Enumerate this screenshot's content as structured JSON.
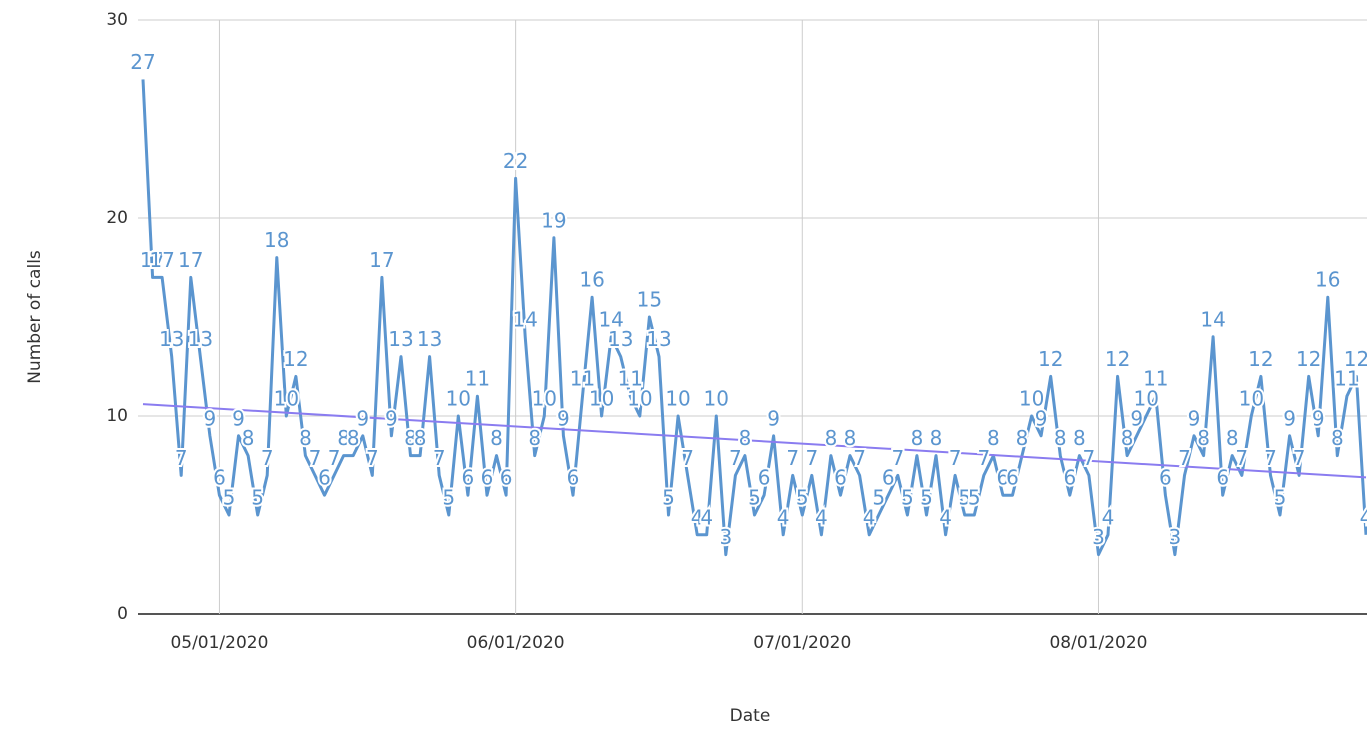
{
  "chart_data": {
    "type": "line",
    "x_axis_label": "Date",
    "y_axis_label": "Number of calls",
    "x": [
      "04/23/2020",
      "04/24/2020",
      "04/25/2020",
      "04/26/2020",
      "04/27/2020",
      "04/28/2020",
      "04/29/2020",
      "04/30/2020",
      "05/01/2020",
      "05/02/2020",
      "05/03/2020",
      "05/04/2020",
      "05/05/2020",
      "05/06/2020",
      "05/07/2020",
      "05/08/2020",
      "05/09/2020",
      "05/10/2020",
      "05/11/2020",
      "05/12/2020",
      "05/13/2020",
      "05/14/2020",
      "05/15/2020",
      "05/16/2020",
      "05/17/2020",
      "05/18/2020",
      "05/19/2020",
      "05/20/2020",
      "05/21/2020",
      "05/22/2020",
      "05/23/2020",
      "05/24/2020",
      "05/25/2020",
      "05/26/2020",
      "05/27/2020",
      "05/28/2020",
      "05/29/2020",
      "05/30/2020",
      "05/31/2020",
      "06/01/2020",
      "06/02/2020",
      "06/03/2020",
      "06/04/2020",
      "06/05/2020",
      "06/06/2020",
      "06/07/2020",
      "06/08/2020",
      "06/09/2020",
      "06/10/2020",
      "06/11/2020",
      "06/12/2020",
      "06/13/2020",
      "06/14/2020",
      "06/15/2020",
      "06/16/2020",
      "06/17/2020",
      "06/18/2020",
      "06/19/2020",
      "06/20/2020",
      "06/21/2020",
      "06/22/2020",
      "06/23/2020",
      "06/24/2020",
      "06/25/2020",
      "06/26/2020",
      "06/27/2020",
      "06/28/2020",
      "06/29/2020",
      "06/30/2020",
      "07/01/2020",
      "07/02/2020",
      "07/03/2020",
      "07/04/2020",
      "07/05/2020",
      "07/06/2020",
      "07/07/2020",
      "07/08/2020",
      "07/09/2020",
      "07/10/2020",
      "07/11/2020",
      "07/12/2020",
      "07/13/2020",
      "07/14/2020",
      "07/15/2020",
      "07/16/2020",
      "07/17/2020",
      "07/18/2020",
      "07/19/2020",
      "07/20/2020",
      "07/21/2020",
      "07/22/2020",
      "07/23/2020",
      "07/24/2020",
      "07/25/2020",
      "07/26/2020",
      "07/27/2020",
      "07/28/2020",
      "07/29/2020",
      "07/30/2020",
      "07/31/2020",
      "08/01/2020",
      "08/02/2020",
      "08/03/2020",
      "08/04/2020",
      "08/05/2020",
      "08/06/2020",
      "08/07/2020",
      "08/08/2020",
      "08/09/2020",
      "08/10/2020",
      "08/11/2020",
      "08/12/2020",
      "08/13/2020",
      "08/14/2020",
      "08/15/2020",
      "08/16/2020",
      "08/17/2020",
      "08/18/2020",
      "08/19/2020",
      "08/20/2020",
      "08/21/2020",
      "08/22/2020",
      "08/23/2020",
      "08/24/2020",
      "08/25/2020",
      "08/26/2020",
      "08/27/2020",
      "08/28/2020",
      "08/29/2020"
    ],
    "series": [
      {
        "color": "#5b95cf",
        "values": [
          27,
          17,
          17,
          13,
          7,
          17,
          13,
          9,
          6,
          5,
          9,
          8,
          5,
          7,
          18,
          10,
          12,
          8,
          7,
          6,
          7,
          8,
          8,
          9,
          7,
          17,
          9,
          13,
          8,
          8,
          13,
          7,
          5,
          10,
          6,
          11,
          6,
          8,
          6,
          22,
          14,
          8,
          10,
          19,
          9,
          6,
          11,
          16,
          10,
          14,
          13,
          11,
          10,
          15,
          13,
          5,
          10,
          7,
          4,
          4,
          10,
          3,
          7,
          8,
          5,
          6,
          9,
          4,
          7,
          5,
          7,
          4,
          8,
          6,
          8,
          7,
          4,
          5,
          6,
          7,
          5,
          8,
          5,
          8,
          4,
          7,
          5,
          5,
          7,
          8,
          6,
          6,
          8,
          10,
          9,
          12,
          8,
          6,
          8,
          7,
          3,
          4,
          12,
          8,
          9,
          10,
          11,
          6,
          3,
          7,
          9,
          8,
          14,
          6,
          8,
          7,
          10,
          12,
          7,
          5,
          9,
          7,
          12,
          9,
          16,
          8,
          11,
          12,
          4
        ]
      }
    ],
    "trendline": {
      "color": "#8a7cf0",
      "x": [
        "04/23/2020",
        "08/29/2020"
      ],
      "values": [
        10.6,
        6.9
      ]
    },
    "xlim": [
      "04/23/2020",
      "08/29/2020"
    ],
    "xticks": [
      "05/01/2020",
      "06/01/2020",
      "07/01/2020",
      "08/01/2020"
    ],
    "ylim": [
      0,
      30
    ],
    "yticks": [
      0,
      10,
      20,
      30
    ],
    "grid": true
  }
}
